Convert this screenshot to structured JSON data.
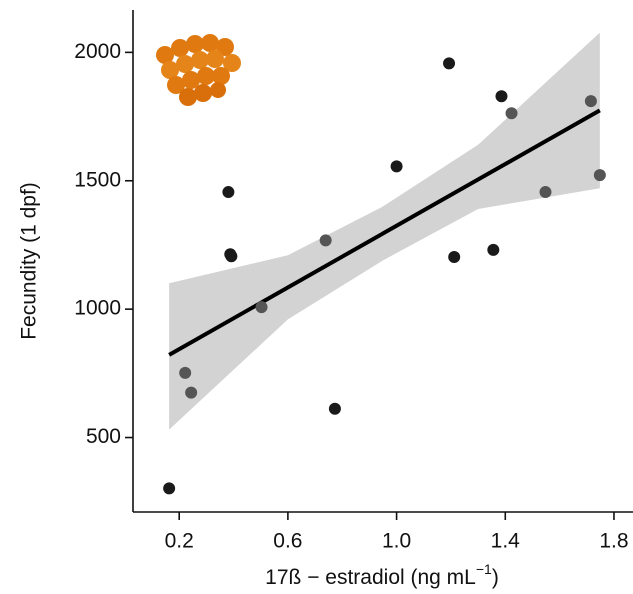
{
  "chart_data": {
    "type": "scatter",
    "xlabel": "17ß − estradiol (ng mL",
    "xlabel_sup": "−1",
    "xlabel_end": ")",
    "ylabel": "Fecundity (1 dpf)",
    "xlim": [
      0.03,
      1.87
    ],
    "ylim": [
      210,
      2165
    ],
    "xticks": [
      0.2,
      0.6,
      {
        "value": 1,
        "label": "1.0"
      },
      1.4,
      1.8
    ],
    "yticks": [
      500,
      1000,
      1500,
      2000
    ],
    "series": [
      {
        "color": "#1a1a1a",
        "x": [
          0.163,
          0.381,
          0.388,
          0.392,
          0.773,
          1.0,
          1.193,
          1.212,
          1.356,
          1.386
        ],
        "values": [
          302,
          1456,
          1214,
          1206,
          612,
          1556,
          1957,
          1203,
          1231,
          1829
        ]
      },
      {
        "color": "#555555",
        "x": [
          0.222,
          0.244,
          0.503,
          0.739,
          1.423,
          1.548,
          1.715,
          1.748
        ],
        "values": [
          752,
          675,
          1008,
          1268,
          1763,
          1456,
          1810,
          1522
        ]
      }
    ],
    "fit": {
      "color": "#000000",
      "x": [
        0.163,
        1.748
      ],
      "values": [
        822,
        1774
      ]
    },
    "band": {
      "color": "#d3d3d3",
      "x": [
        0.163,
        0.6,
        0.95,
        1.3,
        1.748
      ],
      "lower": [
        531,
        960,
        1190,
        1390,
        1471
      ],
      "upper": [
        1101,
        1210,
        1400,
        1640,
        2077
      ]
    }
  }
}
